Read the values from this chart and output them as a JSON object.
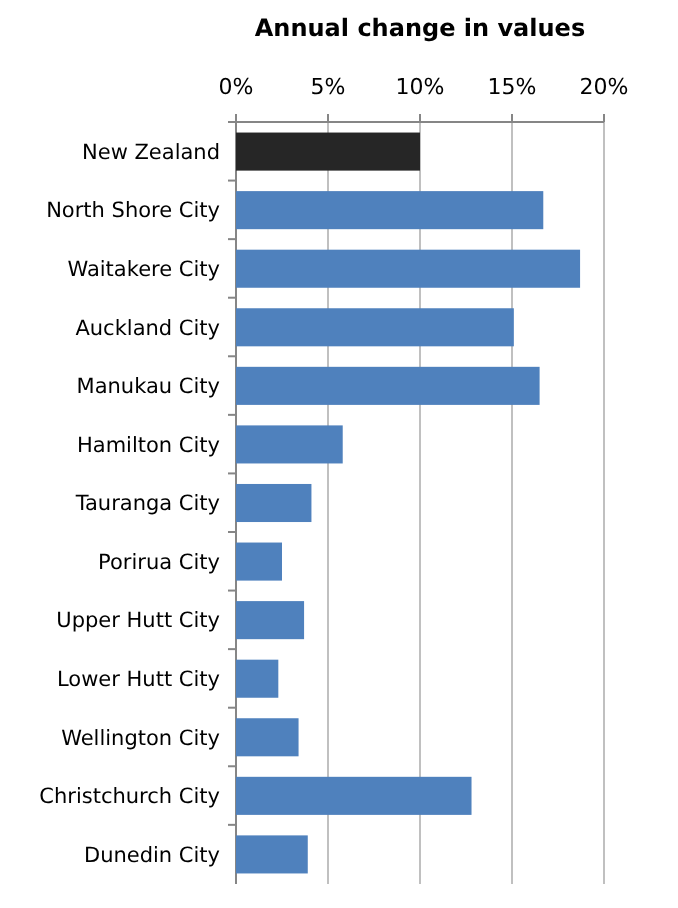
{
  "chart_data": {
    "type": "bar",
    "orientation": "horizontal",
    "title": "Annual change in values",
    "categories": [
      "New Zealand",
      "North Shore City",
      "Waitakere City",
      "Auckland City",
      "Manukau City",
      "Hamilton  City",
      "Tauranga City",
      "Porirua City",
      "Upper Hutt City",
      "Lower Hutt City",
      "Wellington City",
      "Christchurch City",
      "Dunedin City"
    ],
    "values": [
      10,
      16.7,
      18.7,
      15.1,
      16.5,
      5.8,
      4.1,
      2.5,
      3.7,
      2.3,
      3.4,
      12.8,
      3.9
    ],
    "colors": [
      "#262626",
      "#4f81bd",
      "#4f81bd",
      "#4f81bd",
      "#4f81bd",
      "#4f81bd",
      "#4f81bd",
      "#4f81bd",
      "#4f81bd",
      "#4f81bd",
      "#4f81bd",
      "#4f81bd",
      "#4f81bd"
    ],
    "xlim": [
      0,
      20
    ],
    "xticks": [
      {
        "value": 0,
        "label": "0%"
      },
      {
        "value": 5,
        "label": "5%"
      },
      {
        "value": 10,
        "label": "10%"
      },
      {
        "value": 15,
        "label": "15%"
      },
      {
        "value": 20,
        "label": "20%"
      }
    ],
    "grid": "x"
  }
}
